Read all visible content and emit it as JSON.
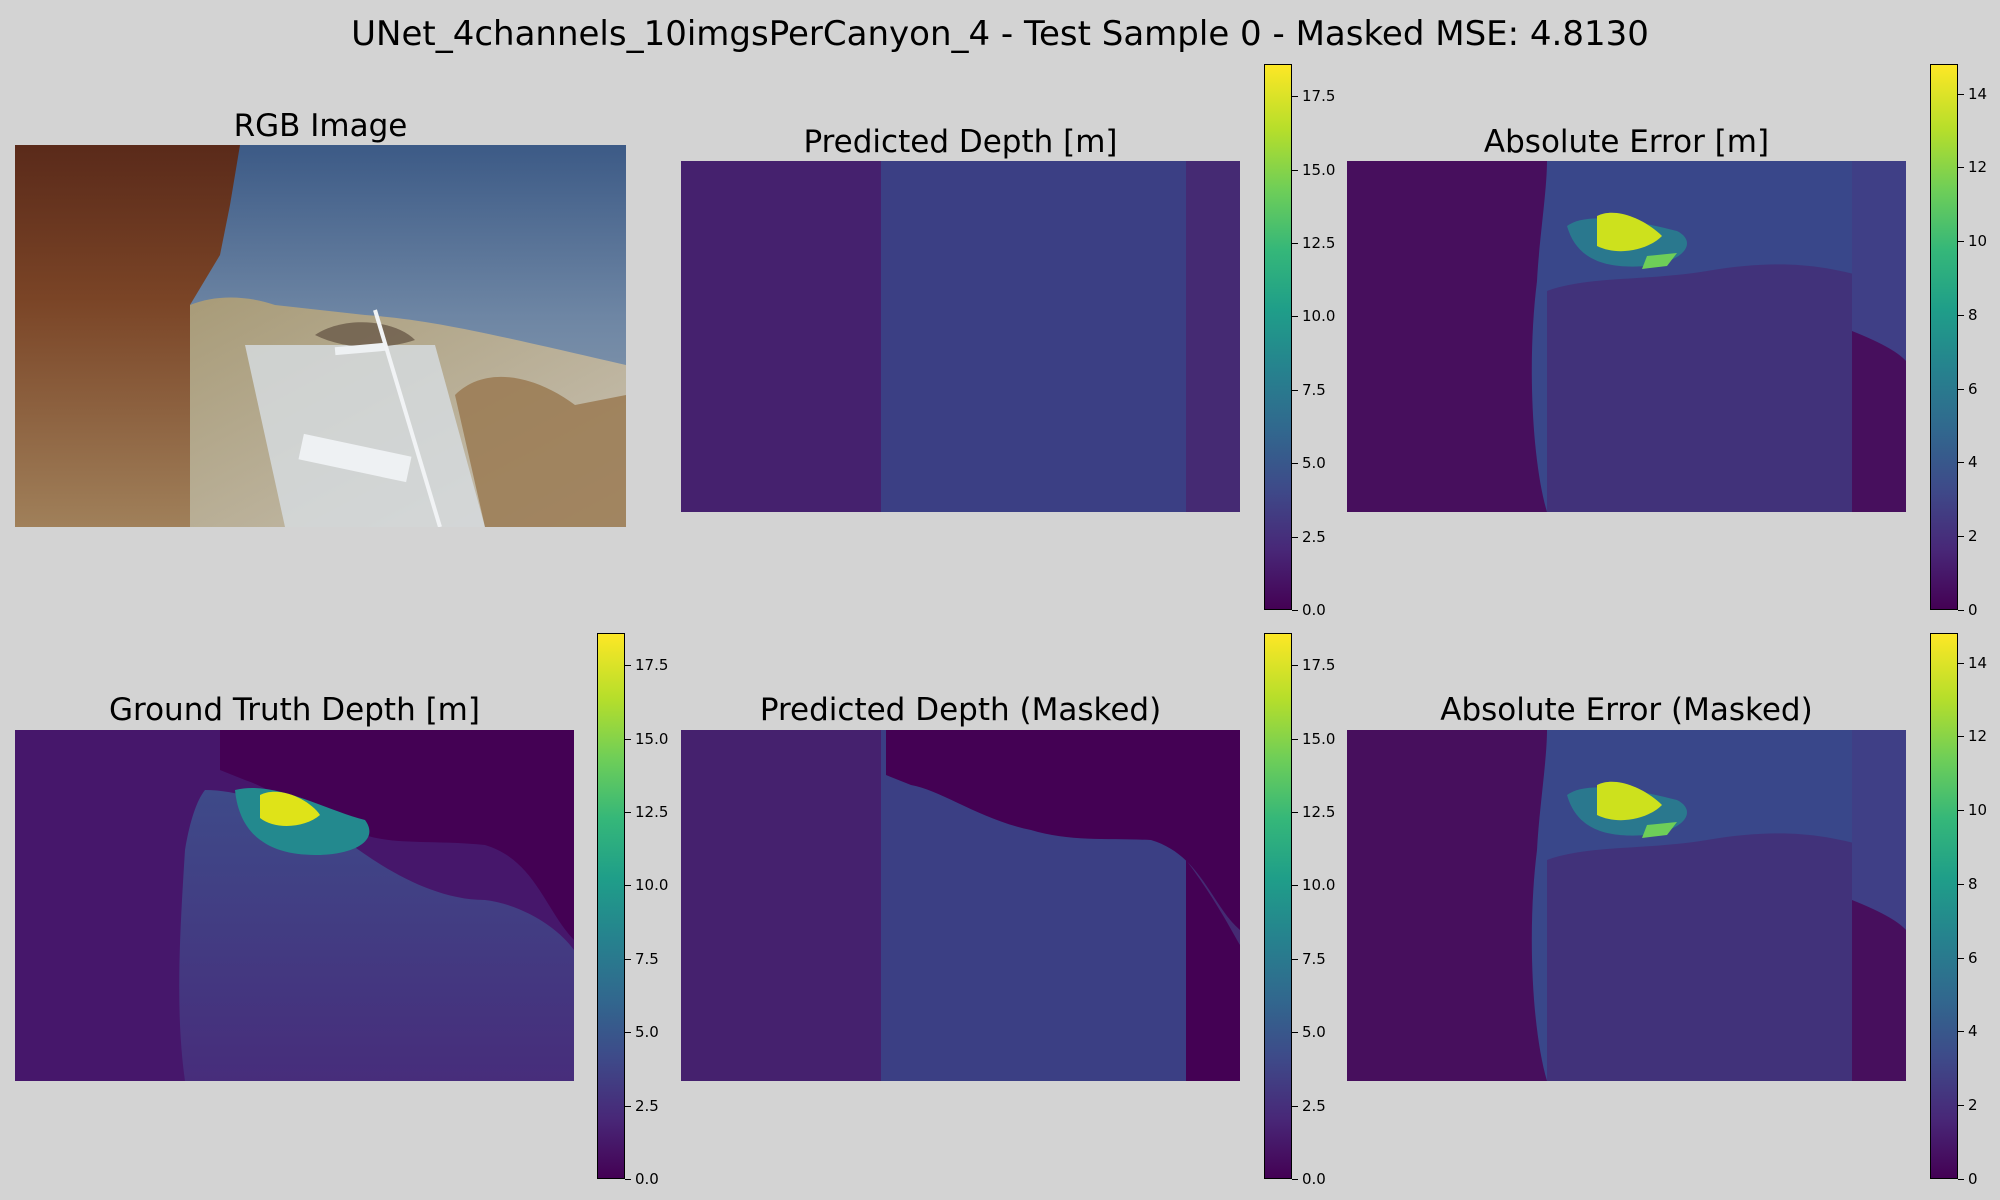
{
  "figure": {
    "suptitle": "UNet_4channels_10imgsPerCanyon_4 - Test Sample 0 - Masked MSE: 4.8130"
  },
  "panels": {
    "rgb": {
      "title": "RGB Image"
    },
    "pred": {
      "title": "Predicted Depth [m]"
    },
    "err": {
      "title": "Absolute Error [m]"
    },
    "gt": {
      "title": "Ground Truth Depth [m]"
    },
    "predm": {
      "title": "Predicted Depth (Masked)"
    },
    "errm": {
      "title": "Absolute Error (Masked)"
    }
  },
  "colors": {
    "viridis_min": "#440154",
    "viridis_max": "#fde725",
    "background": "#d3d3d3"
  },
  "chart_data": [
    {
      "type": "heatmap",
      "title": "Predicted Depth [m]",
      "colormap": "viridis",
      "colorbar": {
        "ylim": [
          0,
          18.6
        ],
        "ticks": [
          0.0,
          2.5,
          5.0,
          7.5,
          10.0,
          12.5,
          15.0,
          17.5
        ]
      }
    },
    {
      "type": "heatmap",
      "title": "Absolute Error [m]",
      "colormap": "viridis",
      "colorbar": {
        "ylim": [
          0,
          14.8
        ],
        "ticks": [
          0,
          2,
          4,
          6,
          8,
          10,
          12,
          14
        ]
      }
    },
    {
      "type": "heatmap",
      "title": "Ground Truth Depth [m]",
      "colormap": "viridis",
      "colorbar": {
        "ylim": [
          0,
          18.6
        ],
        "ticks": [
          0.0,
          2.5,
          5.0,
          7.5,
          10.0,
          12.5,
          15.0,
          17.5
        ]
      }
    },
    {
      "type": "heatmap",
      "title": "Predicted Depth (Masked)",
      "colormap": "viridis",
      "colorbar": {
        "ylim": [
          0,
          18.6
        ],
        "ticks": [
          0.0,
          2.5,
          5.0,
          7.5,
          10.0,
          12.5,
          15.0,
          17.5
        ]
      }
    },
    {
      "type": "heatmap",
      "title": "Absolute Error (Masked)",
      "colormap": "viridis",
      "colorbar": {
        "ylim": [
          0,
          14.8
        ],
        "ticks": [
          0,
          2,
          4,
          6,
          8,
          10,
          12,
          14
        ]
      }
    }
  ]
}
